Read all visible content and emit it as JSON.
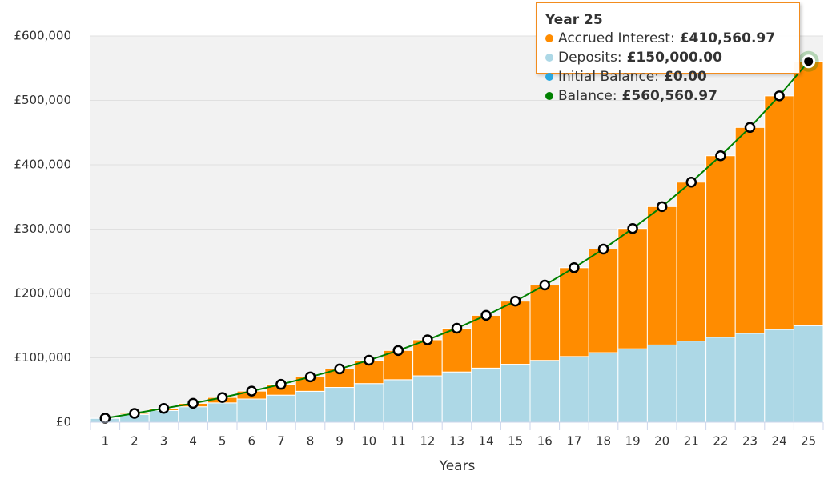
{
  "chart_data": {
    "type": "bar",
    "x_label": "Years",
    "categories": [
      "1",
      "2",
      "3",
      "4",
      "5",
      "6",
      "7",
      "8",
      "9",
      "10",
      "11",
      "12",
      "13",
      "14",
      "15",
      "16",
      "17",
      "18",
      "19",
      "20",
      "21",
      "22",
      "23",
      "24",
      "25"
    ],
    "ylim": [
      0,
      600000
    ],
    "yticks": [
      {
        "value": 0,
        "label": "£0"
      },
      {
        "value": 100000,
        "label": "£100,000"
      },
      {
        "value": 200000,
        "label": "£200,000"
      },
      {
        "value": 300000,
        "label": "£300,000"
      },
      {
        "value": 400000,
        "label": "£400,000"
      },
      {
        "value": 500000,
        "label": "£500,000"
      },
      {
        "value": 600000,
        "label": "£600,000"
      }
    ],
    "grid": true,
    "series": [
      {
        "name": "Accrued Interest",
        "color": "#ff8c00",
        "kind": "bar",
        "values": [
          200,
          1700,
          3400,
          5300,
          8400,
          12300,
          16800,
          22300,
          28700,
          36300,
          45400,
          56000,
          68000,
          82000,
          98000,
          117000,
          138000,
          161000,
          187000,
          215000,
          247000,
          282000,
          320000,
          363000,
          410560.97
        ]
      },
      {
        "name": "Deposits",
        "color": "#add8e6",
        "kind": "bar",
        "values": [
          6000,
          12000,
          18000,
          24000,
          30000,
          36000,
          42000,
          48000,
          54000,
          60000,
          66000,
          72000,
          78000,
          84000,
          90000,
          96000,
          102000,
          108000,
          114000,
          120000,
          126000,
          132000,
          138000,
          144000,
          150000
        ]
      },
      {
        "name": "Initial Balance",
        "color": "#29a8e0",
        "kind": "bar",
        "values": [
          0,
          0,
          0,
          0,
          0,
          0,
          0,
          0,
          0,
          0,
          0,
          0,
          0,
          0,
          0,
          0,
          0,
          0,
          0,
          0,
          0,
          0,
          0,
          0,
          0
        ]
      },
      {
        "name": "Balance",
        "color": "#008000",
        "kind": "line",
        "values": [
          6200,
          13700,
          21400,
          29300,
          38400,
          48300,
          58800,
          70300,
          82700,
          96300,
          111400,
          128000,
          146000,
          166000,
          188000,
          213000,
          240000,
          269000,
          301000,
          335000,
          373000,
          414000,
          458000,
          507000,
          560560.97
        ]
      }
    ],
    "tooltip": {
      "title": "Year 25",
      "values": [
        "£410,560.97",
        "£150,000.00",
        "£0.00",
        "£560,560.97"
      ]
    }
  }
}
